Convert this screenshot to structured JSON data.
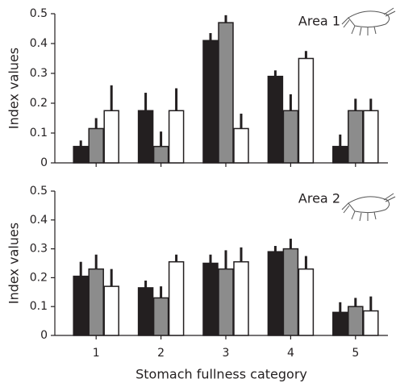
{
  "chart_data": [
    {
      "type": "bar",
      "annotation": "Area 1",
      "y_label": "Index values",
      "categories": [
        null,
        null,
        null,
        null,
        null
      ],
      "ylim": [
        0,
        0.5
      ],
      "yticks": [
        0,
        0.1,
        0.2,
        0.3,
        0.4,
        0.5
      ],
      "series": [
        {
          "color": "#231f20",
          "values": [
            0.055,
            0.175,
            0.41,
            0.29,
            0.055
          ],
          "errors": [
            0.02,
            0.06,
            0.025,
            0.02,
            0.04
          ]
        },
        {
          "color": "#8c8c8c",
          "values": [
            0.115,
            0.055,
            0.47,
            0.175,
            0.175
          ],
          "errors": [
            0.035,
            0.05,
            0.025,
            0.055,
            0.04
          ]
        },
        {
          "color": "#ffffff",
          "values": [
            0.175,
            0.175,
            0.115,
            0.35,
            0.175
          ],
          "errors": [
            0.085,
            0.075,
            0.05,
            0.025,
            0.04
          ]
        }
      ]
    },
    {
      "type": "bar",
      "annotation": "Area 2",
      "y_label": "Index values",
      "x_label": "Stomach fullness category",
      "categories": [
        "1",
        "2",
        "3",
        "4",
        "5"
      ],
      "ylim": [
        0,
        0.5
      ],
      "yticks": [
        0,
        0.1,
        0.2,
        0.3,
        0.4,
        0.5
      ],
      "series": [
        {
          "color": "#231f20",
          "values": [
            0.205,
            0.165,
            0.25,
            0.29,
            0.08
          ],
          "errors": [
            0.05,
            0.025,
            0.03,
            0.02,
            0.035
          ]
        },
        {
          "color": "#8c8c8c",
          "values": [
            0.23,
            0.13,
            0.23,
            0.3,
            0.1
          ],
          "errors": [
            0.05,
            0.04,
            0.065,
            0.035,
            0.03
          ]
        },
        {
          "color": "#ffffff",
          "values": [
            0.17,
            0.255,
            0.255,
            0.23,
            0.085
          ],
          "errors": [
            0.06,
            0.025,
            0.05,
            0.045,
            0.05
          ]
        }
      ]
    }
  ]
}
